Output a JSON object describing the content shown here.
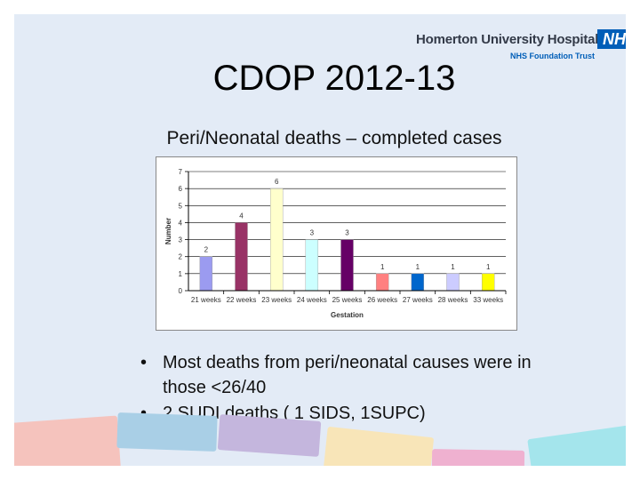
{
  "slide": {
    "title": "CDOP 2012-13",
    "subtitle": "Peri/Neonatal deaths – completed cases",
    "bullets": [
      {
        "marker": "•",
        "text": "Most deaths from peri/neonatal causes were in those <26/40"
      },
      {
        "marker": "•",
        "text": "2 SUDI deaths ( 1 SIDS, 1SUPC)"
      }
    ]
  },
  "logo": {
    "name": "Homerton University Hospital",
    "badge": "NHS",
    "trust": "NHS Foundation Trust",
    "badge_color": "#005eb8"
  },
  "chart_data": {
    "type": "bar",
    "title": "",
    "xlabel": "Gestation",
    "ylabel": "Number",
    "ylim": [
      0,
      7
    ],
    "yticks": [
      0,
      1,
      2,
      3,
      4,
      5,
      6,
      7
    ],
    "categories": [
      "21 weeks",
      "22 weeks",
      "23 weeks",
      "24 weeks",
      "25 weeks",
      "26 weeks",
      "27 weeks",
      "28 weeks",
      "33 weeks"
    ],
    "values": [
      2,
      4,
      6,
      3,
      3,
      1,
      1,
      1,
      1
    ],
    "colors": [
      "#9b9bf0",
      "#993366",
      "#ffffcc",
      "#ccffff",
      "#660066",
      "#ff8080",
      "#0066cc",
      "#ccccff",
      "#ffff00"
    ],
    "grid": true,
    "legend": "none"
  },
  "decor": {
    "colors": [
      "#f5c3bd",
      "#a9cfe6",
      "#c4b6dd",
      "#f8e5b8",
      "#efb1d0",
      "#a4e5ec"
    ]
  }
}
